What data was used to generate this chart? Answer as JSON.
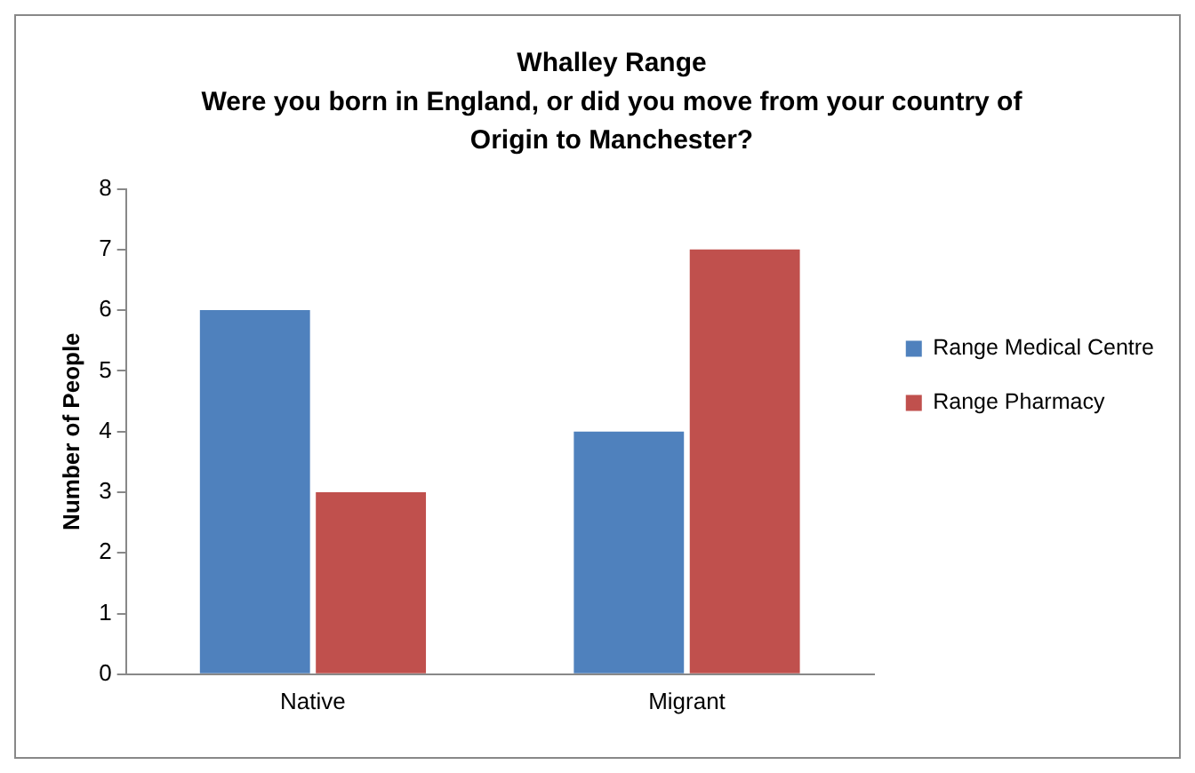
{
  "chart_data": {
    "type": "bar",
    "title": "Whalley Range\nWere you born in England, or did you move from your country of\nOrigin to Manchester?",
    "ylabel": "Number of People",
    "categories": [
      "Native",
      "Migrant"
    ],
    "series": [
      {
        "name": "Range Medical Centre",
        "color": "#4f81bd",
        "values": [
          6,
          4
        ]
      },
      {
        "name": "Range Pharmacy",
        "color": "#c0504d",
        "values": [
          3,
          7
        ]
      }
    ],
    "ylim": [
      0,
      8
    ],
    "yticks": [
      0,
      1,
      2,
      3,
      4,
      5,
      6,
      7,
      8
    ],
    "grid": false,
    "legend": "right"
  }
}
